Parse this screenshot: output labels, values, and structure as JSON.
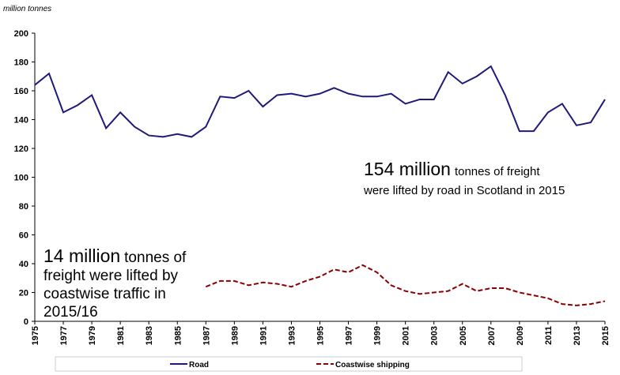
{
  "chart_data": {
    "type": "line",
    "y_label": "million tonnes",
    "x": [
      1975,
      1976,
      1977,
      1978,
      1979,
      1980,
      1981,
      1982,
      1983,
      1984,
      1985,
      1986,
      1987,
      1988,
      1989,
      1990,
      1991,
      1992,
      1993,
      1994,
      1995,
      1996,
      1997,
      1998,
      1999,
      2000,
      2001,
      2002,
      2003,
      2004,
      2005,
      2006,
      2007,
      2008,
      2009,
      2010,
      2011,
      2012,
      2013,
      2014,
      2015
    ],
    "xlim": [
      1975,
      2015
    ],
    "xticks": [
      1975,
      1977,
      1979,
      1981,
      1983,
      1985,
      1987,
      1989,
      1991,
      1993,
      1995,
      1997,
      1999,
      2001,
      2003,
      2005,
      2007,
      2009,
      2011,
      2013,
      2015
    ],
    "ylim": [
      0,
      200
    ],
    "yticks": [
      0,
      20,
      40,
      60,
      80,
      100,
      120,
      140,
      160,
      180,
      200
    ],
    "grid": false,
    "legend": "bottom",
    "series": [
      {
        "name": "Road",
        "color": "#1f1a7a",
        "dash": false,
        "values": [
          164,
          172,
          145,
          150,
          157,
          134,
          145,
          135,
          129,
          128,
          130,
          128,
          135,
          156,
          155,
          160,
          149,
          157,
          158,
          156,
          158,
          162,
          158,
          156,
          156,
          158,
          151,
          154,
          154,
          173,
          165,
          170,
          177,
          157,
          132,
          132,
          145,
          151,
          136,
          138,
          154
        ]
      },
      {
        "name": "Coastwise shipping",
        "color": "#8b0000",
        "dash": true,
        "values": [
          null,
          null,
          null,
          null,
          null,
          null,
          null,
          null,
          null,
          null,
          null,
          null,
          24,
          28,
          28,
          25,
          27,
          26,
          24,
          28,
          31,
          36,
          34,
          39,
          34,
          25,
          21,
          19,
          20,
          21,
          26,
          21,
          23,
          23,
          20,
          18,
          16,
          12,
          11,
          12,
          14
        ]
      }
    ],
    "annotations": [
      {
        "emphasis": "154 million",
        "lines": [
          "tonnes of freight",
          "were lifted by road in Scotland in 2015"
        ]
      },
      {
        "emphasis": "14 million",
        "lines": [
          "tonnes of",
          "freight were lifted by",
          "coastwise traffic in",
          "2015/16"
        ]
      }
    ]
  }
}
